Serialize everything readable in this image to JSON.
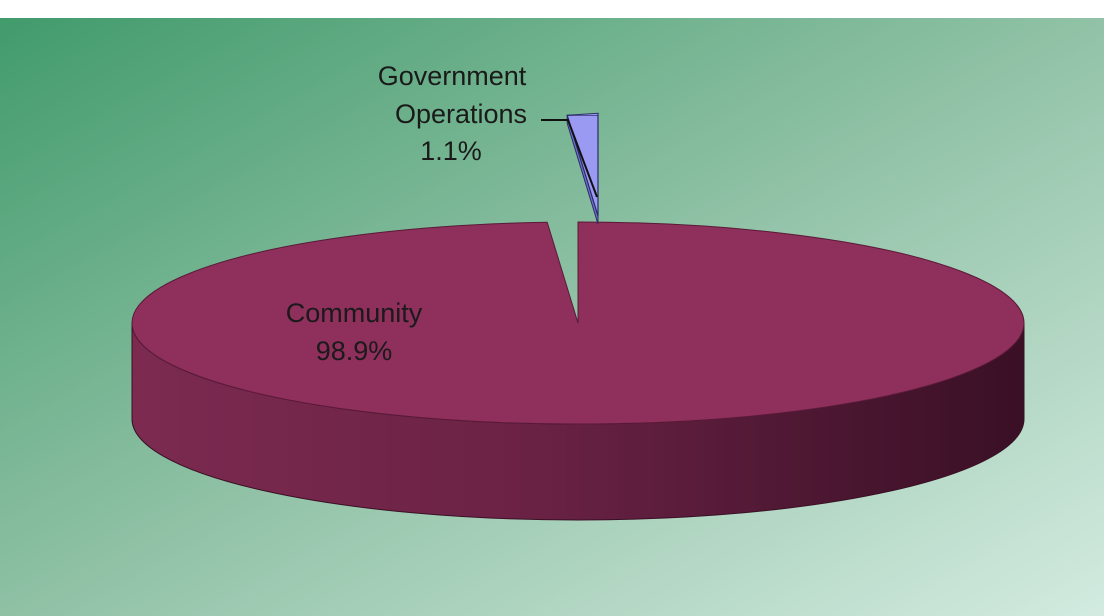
{
  "chart_data": {
    "type": "pie",
    "title": "",
    "categories": [
      "Community",
      "Government Operations"
    ],
    "values": [
      98.9,
      1.1
    ],
    "unit": "%",
    "style": "3d-exploded",
    "labels": [
      {
        "category": "Community",
        "value_text": "98.9%"
      },
      {
        "category": "Government Operations",
        "value_text": "1.1%"
      }
    ],
    "colors": {
      "Community": "#8e2f5c",
      "Government Operations": "#9a9af2",
      "background_start": "#3f9a6a",
      "background_end": "#cfe8dc"
    }
  }
}
